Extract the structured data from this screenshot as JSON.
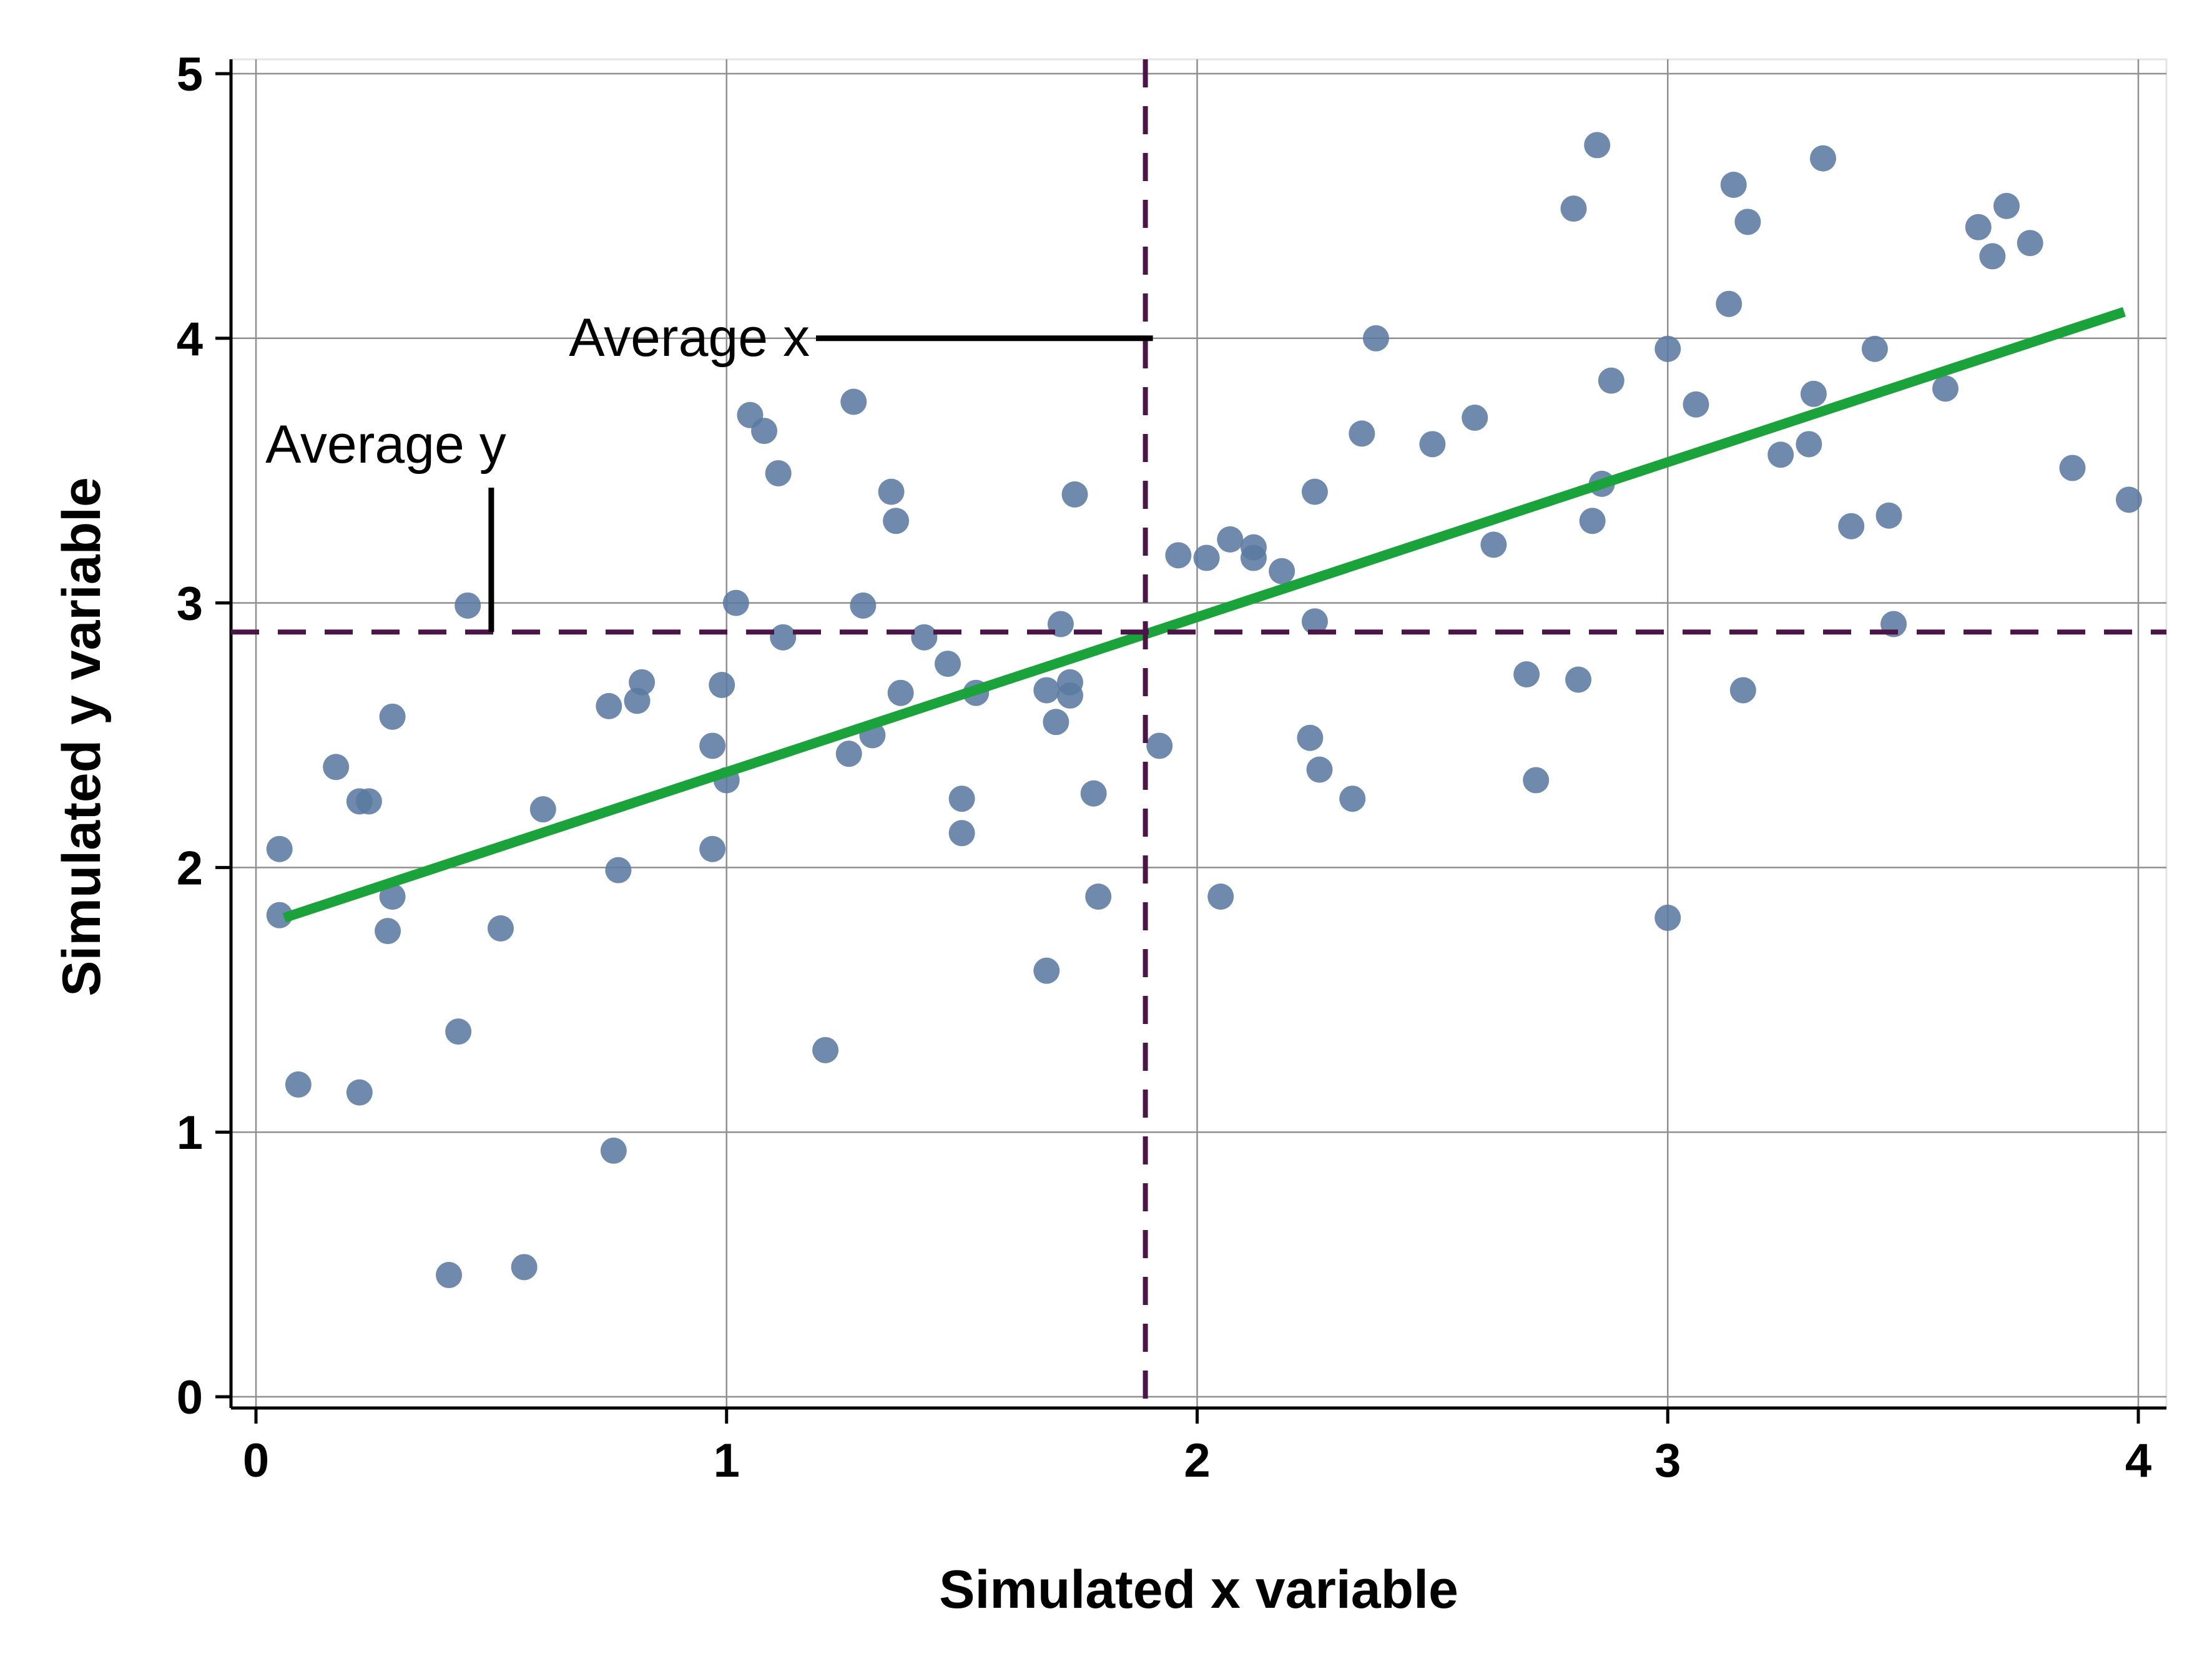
{
  "chart_data": {
    "type": "scatter",
    "xlabel": "Simulated x variable",
    "ylabel": "Simulated y variable",
    "xlim": [
      0,
      4
    ],
    "ylim": [
      0,
      5
    ],
    "xticks": [
      "0",
      "1",
      "2",
      "3",
      "4"
    ],
    "yticks": [
      "0",
      "1",
      "2",
      "3",
      "4",
      "5"
    ],
    "grid": true,
    "colors": {
      "points": "#5b7aa0",
      "fit_line": "#1aa33a",
      "mean_lines": "#4b1548"
    },
    "points": [
      [
        0.05,
        2.07
      ],
      [
        0.05,
        1.82
      ],
      [
        0.09,
        1.18
      ],
      [
        0.17,
        2.38
      ],
      [
        0.22,
        2.25
      ],
      [
        0.24,
        2.25
      ],
      [
        0.22,
        1.15
      ],
      [
        0.29,
        2.57
      ],
      [
        0.29,
        1.89
      ],
      [
        0.28,
        1.76
      ],
      [
        0.41,
        0.46
      ],
      [
        0.43,
        1.38
      ],
      [
        0.45,
        2.99
      ],
      [
        0.52,
        1.77
      ],
      [
        0.57,
        0.49
      ],
      [
        0.61,
        2.22
      ],
      [
        0.75,
        2.61
      ],
      [
        0.76,
        0.93
      ],
      [
        0.77,
        1.99
      ],
      [
        0.81,
        2.63
      ],
      [
        0.82,
        2.7
      ],
      [
        0.97,
        2.07
      ],
      [
        0.97,
        2.46
      ],
      [
        0.99,
        2.69
      ],
      [
        1.0,
        2.33
      ],
      [
        1.02,
        3.0
      ],
      [
        1.05,
        3.71
      ],
      [
        1.08,
        3.65
      ],
      [
        1.11,
        3.49
      ],
      [
        1.12,
        2.87
      ],
      [
        1.21,
        1.31
      ],
      [
        1.26,
        2.43
      ],
      [
        1.27,
        3.76
      ],
      [
        1.29,
        2.99
      ],
      [
        1.31,
        2.5
      ],
      [
        1.35,
        3.42
      ],
      [
        1.36,
        3.31
      ],
      [
        1.37,
        2.66
      ],
      [
        1.42,
        2.87
      ],
      [
        1.47,
        2.77
      ],
      [
        1.5,
        2.26
      ],
      [
        1.5,
        2.13
      ],
      [
        1.53,
        2.66
      ],
      [
        1.68,
        1.61
      ],
      [
        1.68,
        2.67
      ],
      [
        1.7,
        2.55
      ],
      [
        1.71,
        2.92
      ],
      [
        1.73,
        2.7
      ],
      [
        1.73,
        2.65
      ],
      [
        1.74,
        3.41
      ],
      [
        1.78,
        2.28
      ],
      [
        1.79,
        1.89
      ],
      [
        1.92,
        2.46
      ],
      [
        1.96,
        3.18
      ],
      [
        2.02,
        3.17
      ],
      [
        2.05,
        1.89
      ],
      [
        2.07,
        3.24
      ],
      [
        2.12,
        3.21
      ],
      [
        2.12,
        3.17
      ],
      [
        2.18,
        3.12
      ],
      [
        2.24,
        2.49
      ],
      [
        2.25,
        3.42
      ],
      [
        2.25,
        2.93
      ],
      [
        2.26,
        2.37
      ],
      [
        2.33,
        2.26
      ],
      [
        2.35,
        3.64
      ],
      [
        2.38,
        4.0
      ],
      [
        2.5,
        3.6
      ],
      [
        2.59,
        3.7
      ],
      [
        2.63,
        3.22
      ],
      [
        2.7,
        2.73
      ],
      [
        2.72,
        2.33
      ],
      [
        2.8,
        4.49
      ],
      [
        2.81,
        2.71
      ],
      [
        2.84,
        3.31
      ],
      [
        2.85,
        4.73
      ],
      [
        2.86,
        3.45
      ],
      [
        2.88,
        3.84
      ],
      [
        3.0,
        3.96
      ],
      [
        3.0,
        1.81
      ],
      [
        3.06,
        3.75
      ],
      [
        3.13,
        4.13
      ],
      [
        3.14,
        4.58
      ],
      [
        3.16,
        2.67
      ],
      [
        3.17,
        4.44
      ],
      [
        3.24,
        3.56
      ],
      [
        3.3,
        3.6
      ],
      [
        3.31,
        3.79
      ],
      [
        3.33,
        4.68
      ],
      [
        3.39,
        3.29
      ],
      [
        3.44,
        3.96
      ],
      [
        3.47,
        3.33
      ],
      [
        3.48,
        2.92
      ],
      [
        3.59,
        3.81
      ],
      [
        3.66,
        4.42
      ],
      [
        3.69,
        4.31
      ],
      [
        3.72,
        4.5
      ],
      [
        3.77,
        4.36
      ],
      [
        3.86,
        3.51
      ],
      [
        3.98,
        3.39
      ]
    ],
    "fit_line": {
      "x": [
        0.06,
        3.97
      ],
      "y": [
        1.81,
        4.1
      ]
    },
    "mean_x": 1.89,
    "mean_y": 2.89,
    "annotations": [
      {
        "text": "Average x",
        "x": 1.19,
        "y": 4.0
      },
      {
        "text": "Average y",
        "x": 0.02,
        "y": 3.53
      }
    ]
  }
}
